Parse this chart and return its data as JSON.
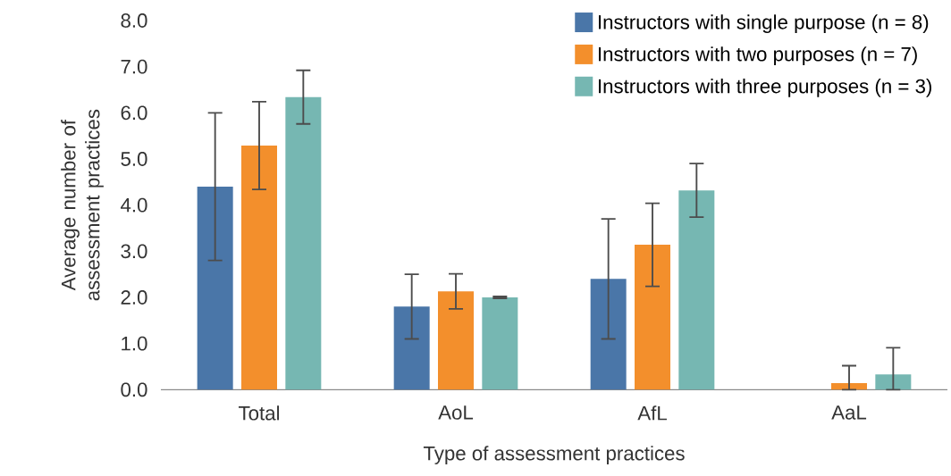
{
  "chart_data": {
    "type": "bar",
    "xlabel": "Type of assessment practices",
    "ylabel": "Average number of assessment practices",
    "categories": [
      "Total",
      "AoL",
      "AfL",
      "AaL"
    ],
    "series": [
      {
        "name": "Instructors with single purpose (n = 8)",
        "color": "#4a76a8",
        "values": [
          4.4,
          1.8,
          2.4,
          0
        ],
        "errors": [
          1.6,
          0.7,
          1.3,
          null
        ]
      },
      {
        "name": "Instructors with two purposes  (n = 7)",
        "color": "#f38f2c",
        "values": [
          5.29,
          2.13,
          3.14,
          0.14
        ],
        "errors": [
          0.95,
          0.38,
          0.9,
          [
            0,
            0.52
          ]
        ]
      },
      {
        "name": "Instructors with three purposes  (n = 3)",
        "color": "#76b7b2",
        "values": [
          6.34,
          2.0,
          4.32,
          0.33
        ],
        "errors": [
          0.58,
          0.02,
          0.58,
          [
            0,
            0.91
          ]
        ]
      }
    ],
    "ylim": [
      0,
      8
    ],
    "yticks": [
      {
        "value": 0,
        "label": "0.0"
      },
      {
        "value": 1,
        "label": "1.0"
      },
      {
        "value": 2,
        "label": "2.0"
      },
      {
        "value": 3,
        "label": "3.0"
      },
      {
        "value": 4,
        "label": "4.0"
      },
      {
        "value": 5,
        "label": "5.0"
      },
      {
        "value": 6,
        "label": "6.0"
      },
      {
        "value": 7,
        "label": "7.0"
      },
      {
        "value": 8,
        "label": "8.0"
      }
    ],
    "grid": false,
    "legend": "top right"
  }
}
